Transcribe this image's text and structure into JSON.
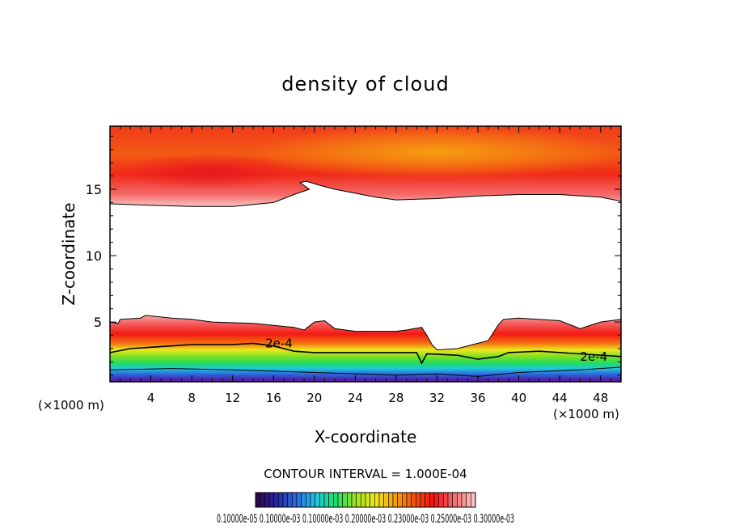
{
  "chart_data": {
    "type": "heatmap",
    "title": "density of cloud",
    "xlabel": "X-coordinate",
    "ylabel": "Z-coordinate",
    "x_unit_label": "(×1000 m)",
    "x_unit_label_right": "(×1000 m)",
    "xlim": [
      0,
      50
    ],
    "ylim": [
      0.5,
      19.75
    ],
    "x_ticks": [
      4,
      8,
      12,
      16,
      20,
      24,
      28,
      32,
      36,
      40,
      44,
      48
    ],
    "y_ticks": [
      5,
      10,
      15
    ],
    "contour_interval_label": "CONTOUR INTERVAL = 1.000E-04",
    "contour_labels": [
      {
        "text": "2e-4",
        "x": 15.2,
        "z": 3.4
      },
      {
        "text": "2e-4",
        "x": 46.0,
        "z": 2.4
      }
    ],
    "colorbar": {
      "label_text": "0.10000e-05 0.10000e-03 0.10000e-03 0.20000e-03 0.23000e-03 0.25000e-03 0.30000e-03",
      "colors": [
        "#2a0a4a",
        "#2828a8",
        "#2c6ee0",
        "#22c8e0",
        "#20e068",
        "#9ee020",
        "#ece820",
        "#f4a010",
        "#f05010",
        "#f41010",
        "#f46a6a",
        "#fac0c0"
      ]
    },
    "cloud_layers": {
      "upper": {
        "z_bottom_min": 13.7,
        "z_bottom_max": 15.6,
        "z_top": 19.75
      },
      "lower": {
        "z_bottom": 0.5,
        "z_top_min": 2.4,
        "z_top_max": 5.5
      }
    }
  }
}
